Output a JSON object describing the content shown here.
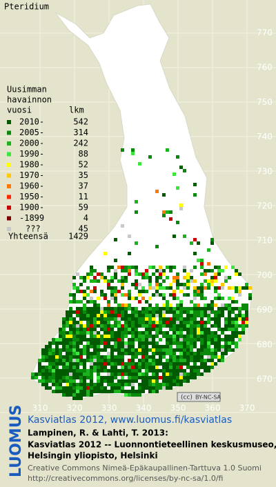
{
  "title": "Pteridium",
  "legend": {
    "header": [
      "Uusimman",
      "havainnon",
      "vuosi"
    ],
    "count_header": "lkm",
    "entries": [
      {
        "label": "2010-",
        "count": "542",
        "color": "#005a00"
      },
      {
        "label": "2005-",
        "count": "314",
        "color": "#0a8a0a"
      },
      {
        "label": "2000-",
        "count": "242",
        "color": "#1cb41c"
      },
      {
        "label": "1990-",
        "count": "88",
        "color": "#3ce63c"
      },
      {
        "label": "1980-",
        "count": "52",
        "color": "#ffff00"
      },
      {
        "label": "1970-",
        "count": "35",
        "color": "#ffc800"
      },
      {
        "label": "1960-",
        "count": "37",
        "color": "#ff7800"
      },
      {
        "label": "1950-",
        "count": "11",
        "color": "#ff2800"
      },
      {
        "label": "1900-",
        "count": "59",
        "color": "#c80000"
      },
      {
        "label": "-1899",
        "count": "4",
        "color": "#7a0000"
      },
      {
        "label": "???",
        "count": "45",
        "color": "#c8c8c8"
      }
    ],
    "total_label": "Yhteensä",
    "total": "1429"
  },
  "y_axis_labels": [
    "770",
    "760",
    "750",
    "740",
    "730",
    "720",
    "710",
    "700",
    "690",
    "680",
    "670"
  ],
  "x_axis_labels": [
    "310",
    "320",
    "330",
    "340",
    "350",
    "360",
    "370"
  ],
  "license_badge": "BY-NC-SA",
  "footer": {
    "logo": "LUOMUS",
    "link": "Kasviatlas 2012, www.luomus.fi/kasviatlas",
    "citation": [
      "Lampinen, R. & Lahti, T. 2013:",
      "Kasviatlas 2012 -- Luonnontieteellinen keskusmuseo,",
      "Helsingin yliopisto, Helsinki"
    ],
    "license": [
      "Creative Commons Nimeä-Epäkaupallinen-Tarttuva 1.0 Suomi",
      "http://creativecommons.org/licenses/by-nc-sa/1.0/fi"
    ]
  }
}
